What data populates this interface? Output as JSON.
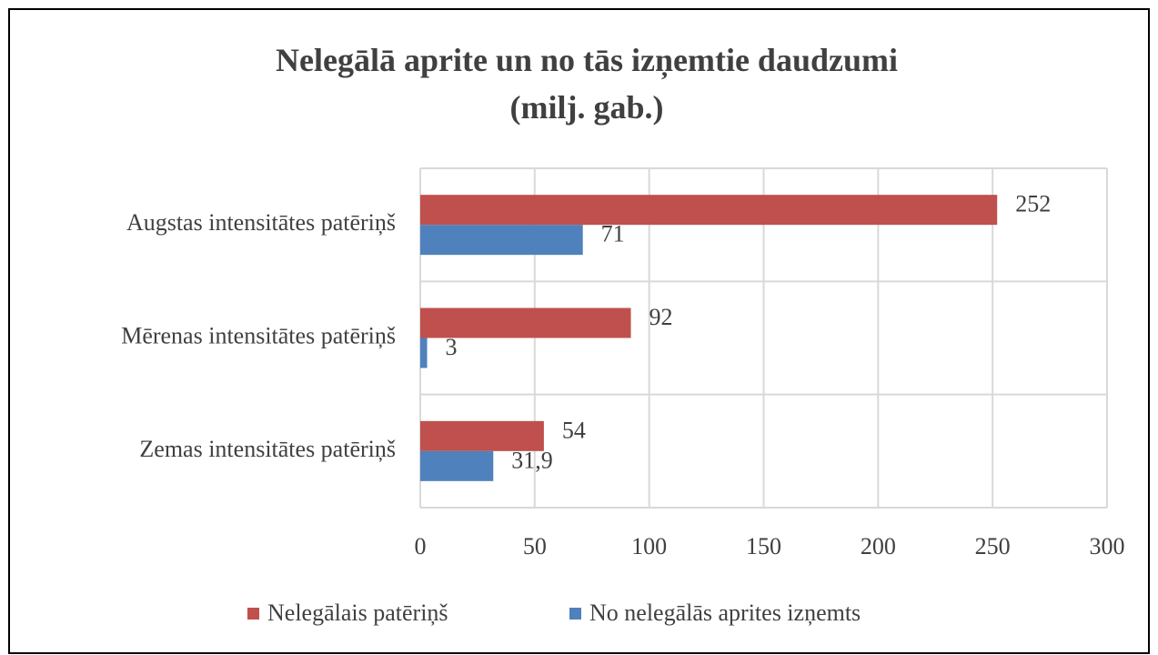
{
  "chart_data": {
    "type": "hbar",
    "title": "Nelegālā aprite un no tās izņemtie daudzumi (milj. gab.)",
    "categories": [
      "Augstas intensitātes patēriņš",
      "Mērenas intensitātes patēriņš",
      "Zemas intensitātes patēriņš"
    ],
    "series": [
      {
        "name": "Nelegālais patēriņš",
        "color": "#c0504d",
        "values": [
          252,
          92,
          54
        ]
      },
      {
        "name": "No nelegālās aprites izņemts",
        "color": "#4f81bd",
        "values": [
          71,
          3,
          31.9
        ],
        "value_labels": [
          "71",
          "3",
          "31,9"
        ]
      }
    ],
    "xlim": [
      0,
      300
    ],
    "xticks": [
      0,
      50,
      100,
      150,
      200,
      250,
      300
    ],
    "grid": true,
    "legend": "bottom"
  }
}
